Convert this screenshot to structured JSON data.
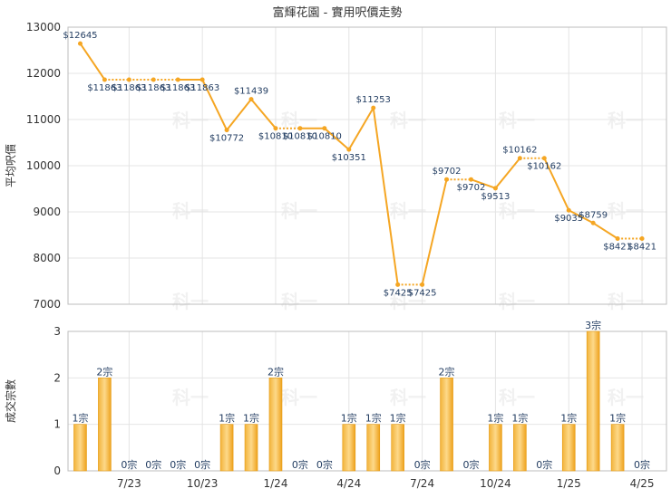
{
  "chart_data": [
    {
      "type": "line",
      "title": "富輝花園 - 實用呎價走勢",
      "ylabel": "平均呎價",
      "ylim": [
        7000,
        13000
      ],
      "yticks": [
        7000,
        8000,
        9000,
        10000,
        11000,
        12000,
        13000
      ],
      "color": "#f5a623",
      "series": [
        {
          "x": [
            "2023-05",
            "2023-06",
            "2023-07",
            "2023-08",
            "2023-09",
            "2023-10",
            "2023-11",
            "2023-12",
            "2024-01",
            "2024-02",
            "2024-03",
            "2024-04",
            "2024-05",
            "2024-06",
            "2024-07",
            "2024-08",
            "2024-09",
            "2024-10",
            "2024-11",
            "2024-12",
            "2025-01",
            "2025-02",
            "2025-03",
            "2025-04"
          ],
          "values": [
            12645,
            11863,
            11863,
            11863,
            11863,
            11863,
            10772,
            11439,
            10810,
            10810,
            10810,
            10351,
            11253,
            7425,
            7425,
            9702,
            9702,
            9513,
            10162,
            10162,
            9035,
            8759,
            8421,
            8421
          ],
          "labels": [
            "$12645",
            "$11863",
            "$11863",
            "$11863",
            "$11863",
            "$11863",
            "$10772",
            "$11439",
            "$10810",
            "$10810",
            "$10810",
            "$10351",
            "$11253",
            "$7425",
            "$7425",
            "$9702",
            "$9702",
            "$9513",
            "$10162",
            "$10162",
            "$9035",
            "$8759",
            "$8421",
            "$8421"
          ],
          "estimated": [
            false,
            false,
            true,
            true,
            true,
            false,
            false,
            false,
            false,
            true,
            false,
            false,
            false,
            false,
            true,
            false,
            true,
            false,
            false,
            true,
            false,
            false,
            false,
            true
          ]
        }
      ]
    },
    {
      "type": "bar",
      "ylabel": "成交宗數",
      "ylim": [
        0,
        3
      ],
      "yticks": [
        0,
        1,
        2,
        3
      ],
      "color": "#f5a623",
      "categories": [
        "2023-05",
        "2023-06",
        "2023-07",
        "2023-08",
        "2023-09",
        "2023-10",
        "2023-11",
        "2023-12",
        "2024-01",
        "2024-02",
        "2024-03",
        "2024-04",
        "2024-05",
        "2024-06",
        "2024-07",
        "2024-08",
        "2024-09",
        "2024-10",
        "2024-11",
        "2024-12",
        "2025-01",
        "2025-02",
        "2025-03",
        "2025-04"
      ],
      "values": [
        1,
        2,
        0,
        0,
        0,
        0,
        1,
        1,
        2,
        0,
        0,
        1,
        1,
        1,
        0,
        2,
        0,
        1,
        1,
        0,
        1,
        3,
        1,
        0
      ],
      "labels": [
        "1宗",
        "2宗",
        "0宗",
        "0宗",
        "0宗",
        "0宗",
        "1宗",
        "1宗",
        "2宗",
        "0宗",
        "0宗",
        "1宗",
        "1宗",
        "1宗",
        "0宗",
        "2宗",
        "0宗",
        "1宗",
        "1宗",
        "0宗",
        "1宗",
        "3宗",
        "1宗",
        "0宗"
      ],
      "xticks": [
        {
          "index": 2,
          "label": "7/23"
        },
        {
          "index": 5,
          "label": "10/23"
        },
        {
          "index": 8,
          "label": "1/24"
        },
        {
          "index": 11,
          "label": "4/24"
        },
        {
          "index": 14,
          "label": "7/24"
        },
        {
          "index": 17,
          "label": "10/24"
        },
        {
          "index": 20,
          "label": "1/25"
        },
        {
          "index": 23,
          "label": "4/25"
        }
      ]
    }
  ],
  "watermark": "科一"
}
